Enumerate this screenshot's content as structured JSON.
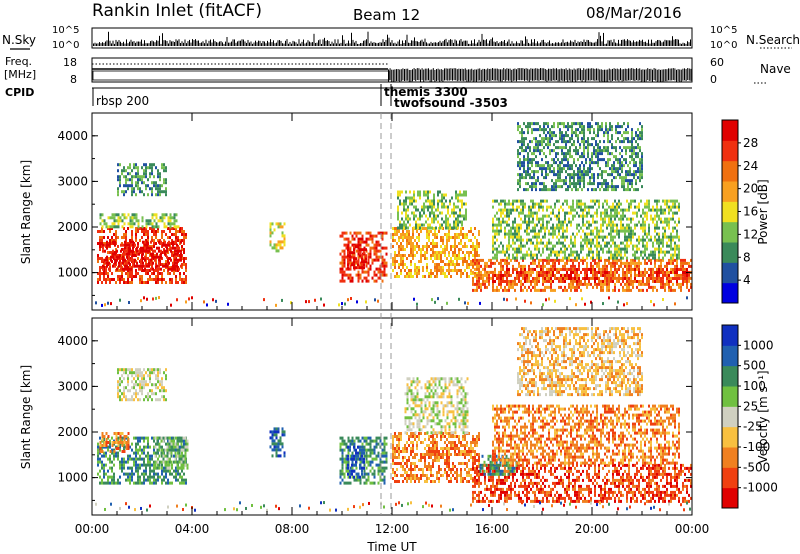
{
  "header": {
    "title": "Rankin Inlet (fitACF)",
    "beam": "Beam 12",
    "date": "08/Mar/2016"
  },
  "left_labels": {
    "nsky": "N.Sky",
    "freq": "Freq.",
    "mhz": "[MHz]",
    "cpid": "CPID"
  },
  "right_labels": {
    "nsearch": "N.Search",
    "nave": "Nave"
  },
  "nsky_ticks": [
    "10^5",
    "10^0"
  ],
  "nsearch_ticks": [
    "10^5",
    "10^0"
  ],
  "freq_ticks": [
    "18",
    "8"
  ],
  "nave_ticks": [
    "60",
    "0"
  ],
  "cpid_entries": [
    {
      "label": "rbsp 200",
      "start_hour": 0.0
    },
    {
      "label": "themis 3300",
      "start_hour": 11.55
    },
    {
      "label": "twofsound -3503",
      "start_hour": 11.95
    }
  ],
  "colors": {
    "power_scale": [
      "#0000e0",
      "#2050a0",
      "#3a8a5a",
      "#78c050",
      "#f0e020",
      "#f8a020",
      "#f07010",
      "#f03010",
      "#e00000"
    ],
    "velocity_scale": [
      "#e00000",
      "#f04010",
      "#f08020",
      "#f8c040",
      "#d0d0c0",
      "#70c040",
      "#3a8a5a",
      "#2060b0",
      "#1030c0"
    ]
  },
  "chart_data": [
    {
      "type": "heatmap",
      "name": "power",
      "ylabel": "Slant Range [km]",
      "x_range_hours": [
        0,
        24
      ],
      "ylim": [
        180,
        4500
      ],
      "y_ticks": [
        "1000",
        "2000",
        "3000",
        "4000"
      ],
      "colorbar_label": "Power [dB]",
      "colorbar_ticks": [
        "4",
        "8",
        "12",
        "16",
        "20",
        "24",
        "28"
      ],
      "colorbar_range": [
        0,
        32
      ],
      "patches": [
        {
          "t0": 0.2,
          "t1": 3.8,
          "r0": 800,
          "r1": 2000,
          "level": 7
        },
        {
          "t0": 0.4,
          "t1": 3.6,
          "r0": 1100,
          "r1": 1700,
          "level": 8
        },
        {
          "t0": 0.3,
          "t1": 3.5,
          "r0": 2000,
          "r1": 2300,
          "level": 3
        },
        {
          "t0": 1.0,
          "t1": 3.0,
          "r0": 2700,
          "r1": 3400,
          "level": 2
        },
        {
          "t0": 7.1,
          "t1": 7.7,
          "r0": 1500,
          "r1": 2100,
          "level": 4
        },
        {
          "t0": 9.9,
          "t1": 11.8,
          "r0": 800,
          "r1": 1900,
          "level": 7
        },
        {
          "t0": 10.2,
          "t1": 11.0,
          "r0": 1100,
          "r1": 1600,
          "level": 8
        },
        {
          "t0": 12.0,
          "t1": 15.5,
          "r0": 900,
          "r1": 2000,
          "level": 5
        },
        {
          "t0": 12.2,
          "t1": 15.0,
          "r0": 2000,
          "r1": 2800,
          "level": 3
        },
        {
          "t0": 15.2,
          "t1": 24.0,
          "r0": 600,
          "r1": 1300,
          "level": 6
        },
        {
          "t0": 16.0,
          "t1": 23.8,
          "r0": 800,
          "r1": 1100,
          "level": 7
        },
        {
          "t0": 16.0,
          "t1": 23.5,
          "r0": 1300,
          "r1": 2600,
          "level": 3
        },
        {
          "t0": 17.0,
          "t1": 22.0,
          "r0": 2800,
          "r1": 4300,
          "level": 2
        }
      ]
    },
    {
      "type": "heatmap",
      "name": "velocity",
      "ylabel": "Slant Range [km]",
      "xlabel": "Time UT",
      "x_range_hours": [
        0,
        24
      ],
      "x_ticks": [
        "00:00",
        "04:00",
        "08:00",
        "12:00",
        "16:00",
        "20:00",
        "00:00"
      ],
      "ylim": [
        180,
        4500
      ],
      "y_ticks": [
        "1000",
        "2000",
        "3000",
        "4000"
      ],
      "colorbar_label": "Velocity [m s⁻¹]",
      "colorbar_ticks": [
        "-1000",
        "-500",
        "-100",
        "-25",
        "25",
        "100",
        "500",
        "1000"
      ],
      "patches": [
        {
          "t0": 0.2,
          "t1": 3.8,
          "r0": 900,
          "r1": 1900,
          "level": 6
        },
        {
          "t0": 0.3,
          "t1": 1.5,
          "r0": 1600,
          "r1": 2000,
          "level": 2
        },
        {
          "t0": 2.5,
          "t1": 3.8,
          "r0": 1200,
          "r1": 1900,
          "level": 5
        },
        {
          "t0": 1.0,
          "t1": 3.0,
          "r0": 2700,
          "r1": 3400,
          "level": 4
        },
        {
          "t0": 7.1,
          "t1": 7.7,
          "r0": 1500,
          "r1": 2100,
          "level": 7
        },
        {
          "t0": 9.9,
          "t1": 11.8,
          "r0": 900,
          "r1": 1900,
          "level": 6
        },
        {
          "t0": 10.2,
          "t1": 10.9,
          "r0": 1000,
          "r1": 1700,
          "level": 8
        },
        {
          "t0": 12.0,
          "t1": 15.5,
          "r0": 900,
          "r1": 2000,
          "level": 2
        },
        {
          "t0": 12.5,
          "t1": 15.0,
          "r0": 2000,
          "r1": 3200,
          "level": 4
        },
        {
          "t0": 15.2,
          "t1": 24.0,
          "r0": 500,
          "r1": 1300,
          "level": 1
        },
        {
          "t0": 15.5,
          "t1": 17.0,
          "r0": 1100,
          "r1": 1500,
          "level": 6
        },
        {
          "t0": 16.0,
          "t1": 23.5,
          "r0": 1300,
          "r1": 2600,
          "level": 2
        },
        {
          "t0": 17.0,
          "t1": 22.0,
          "r0": 2800,
          "r1": 4300,
          "level": 3
        }
      ]
    }
  ]
}
